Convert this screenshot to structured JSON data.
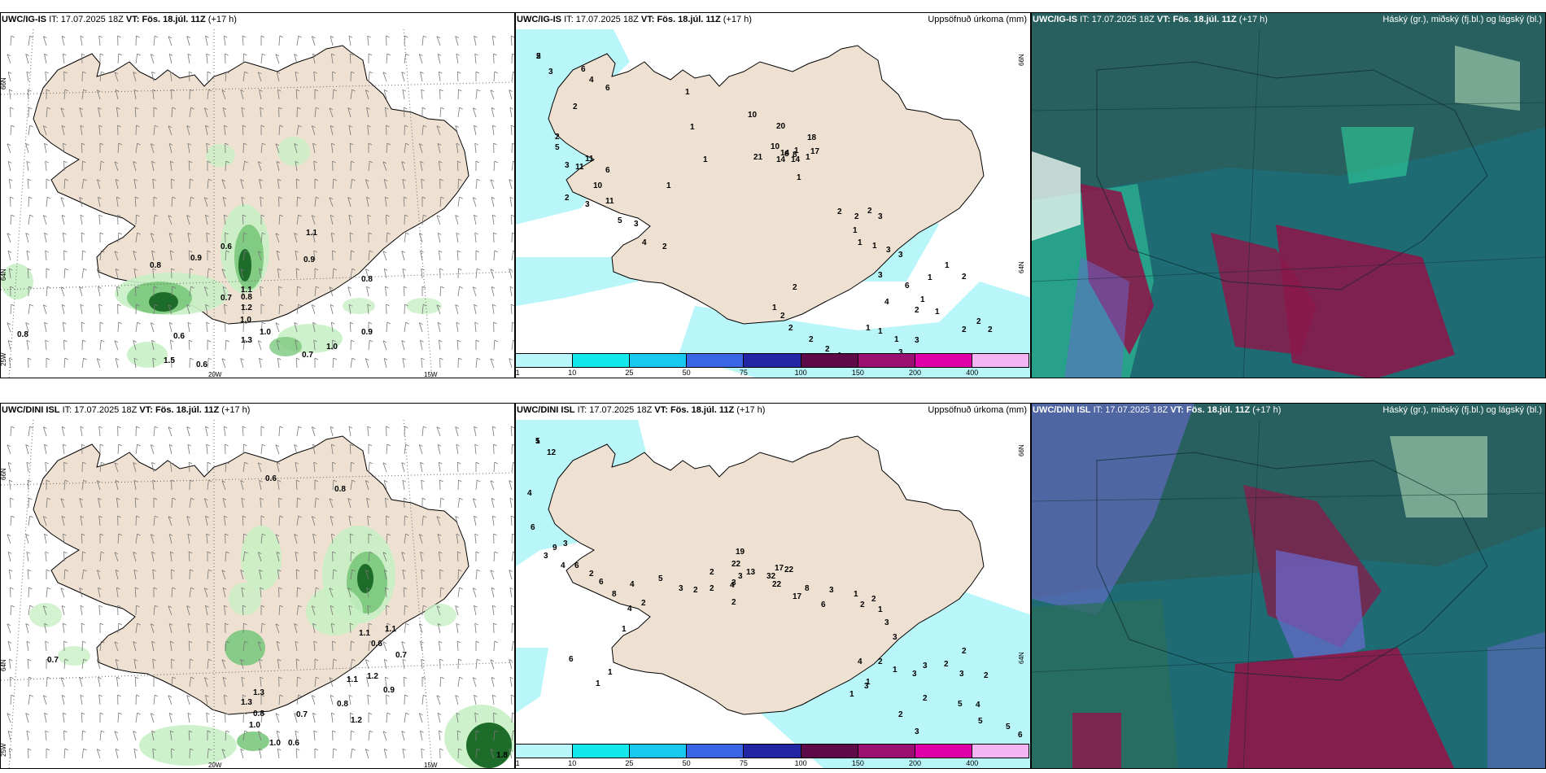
{
  "rows": [
    {
      "model": "UWC/IG-IS",
      "it_label": "IT:",
      "it": "17.07.2025 18Z",
      "vt_label": "VT:",
      "vt": "Fös. 18.júl. 11Z",
      "lead": "(+17 h)",
      "wind_values": [
        "0.8",
        "0.9",
        "0.6",
        "0.9",
        "1.1",
        "1.1",
        "0.8",
        "1.2",
        "0.7",
        "1.0",
        "1.0",
        "0.8",
        "0.6",
        "1.5",
        "0.6",
        "1.3",
        "0.7",
        "1.0",
        "0.9",
        "0.8"
      ],
      "precip_values": [
        "5",
        "3",
        "6",
        "4",
        "6",
        "2",
        "2",
        "5",
        "3",
        "11",
        "11",
        "10",
        "11",
        "6",
        "2",
        "3",
        "5",
        "3",
        "4",
        "2",
        "1",
        "1",
        "1",
        "1",
        "10",
        "20",
        "14",
        "6",
        "21",
        "10",
        "8",
        "18",
        "17",
        "14",
        "14",
        "1",
        "1",
        "1",
        "2",
        "2",
        "2",
        "3",
        "1",
        "1",
        "1",
        "3",
        "3",
        "3",
        "6",
        "4",
        "2",
        "1",
        "2",
        "2",
        "2",
        "2",
        "1",
        "1",
        "1",
        "1",
        "3",
        "2",
        "3",
        "1",
        "1",
        "2",
        "2",
        "2",
        "2",
        "1",
        "1",
        "2",
        "2"
      ],
      "coords": {
        "lon_left": "25W",
        "lon_mid": "20W",
        "lon_right": "15W",
        "lat_top": "66N",
        "lat_mid": "64N"
      }
    },
    {
      "model": "UWC/DINI ISL",
      "it_label": "IT:",
      "it": "17.07.2025 18Z",
      "vt_label": "VT:",
      "vt": "Fös. 18.júl. 11Z",
      "lead": "(+17 h)",
      "wind_values": [
        "0.6",
        "0.7",
        "0.8",
        "0.7",
        "1.1",
        "1.1",
        "0.6",
        "0.7",
        "1.2",
        "1.3",
        "0.9",
        "0.8",
        "1.3",
        "0.8",
        "1.0",
        "1.2",
        "1.0",
        "0.6",
        "1.1",
        "1.8"
      ],
      "precip_values": [
        "5",
        "12",
        "4",
        "6",
        "9",
        "3",
        "3",
        "4",
        "6",
        "2",
        "6",
        "8",
        "4",
        "4",
        "2",
        "5",
        "3",
        "2",
        "2",
        "2",
        "4",
        "3",
        "2",
        "3",
        "22",
        "19",
        "13",
        "32",
        "17",
        "22",
        "22",
        "17",
        "8",
        "6",
        "3",
        "1",
        "2",
        "2",
        "1",
        "3",
        "3",
        "4",
        "2",
        "1",
        "1",
        "1",
        "3",
        "3",
        "3",
        "2",
        "2",
        "2",
        "3",
        "2",
        "2",
        "3",
        "5",
        "4",
        "5",
        "5",
        "6",
        "6",
        "1",
        "1",
        "1",
        "1"
      ],
      "coords": {
        "lon_left": "25W",
        "lon_mid": "20W",
        "lon_right": "15W",
        "lat_top": "66N",
        "lat_mid": "64N"
      }
    }
  ],
  "precip_title": "Uppsöfnuð úrkoma (mm)",
  "cloud_title": "Háský (gr.), miðský (fj.bl.) og lágský (bl.)",
  "precip_legend": {
    "ticks": [
      "1",
      "10",
      "25",
      "50",
      "75",
      "100",
      "150",
      "200",
      "400"
    ],
    "colors": [
      "#b8f6fa",
      "#14e8ec",
      "#18c8ee",
      "#3a66e6",
      "#2226a4",
      "#5e0a48",
      "#9a1070",
      "#e000a8",
      "#f4b6f2"
    ]
  },
  "colors": {
    "land": "#efe1d2",
    "sea_low": "#b8f6fa",
    "green_light": "#c8f0c4",
    "green_mid": "#7cc87e",
    "green_dark": "#1e6c2a",
    "cloud_teal": "#1e6b74",
    "cloud_green": "#2fce9a",
    "cloud_red": "#8a1a4a",
    "cloud_blue": "#6a6ad0"
  }
}
